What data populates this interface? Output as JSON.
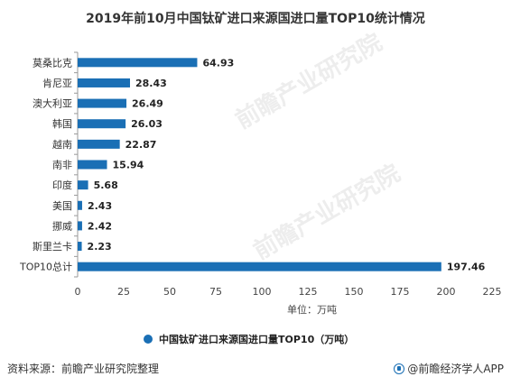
{
  "title": "2019年前10月中国钛矿进口来源国进口量TOP10统计情况",
  "chart_data": {
    "type": "bar",
    "orientation": "horizontal",
    "categories": [
      "莫桑比克",
      "肯尼亚",
      "澳大利亚",
      "韩国",
      "越南",
      "南非",
      "印度",
      "美国",
      "挪威",
      "斯里兰卡",
      "TOP10总计"
    ],
    "series": [
      {
        "name": "中国钛矿进口来源国进口量TOP10（万吨）",
        "values": [
          64.93,
          28.43,
          26.49,
          26.03,
          22.87,
          15.94,
          5.68,
          2.43,
          2.42,
          2.23,
          197.46
        ]
      }
    ],
    "value_labels": [
      "64.93",
      "28.43",
      "26.49",
      "26.03",
      "22.87",
      "15.94",
      "5.68",
      "2.43",
      "2.42",
      "2.23",
      "197.46"
    ],
    "xlabel": "单位：万吨",
    "xlim": [
      0,
      225
    ],
    "xticks": [
      0,
      25,
      50,
      75,
      100,
      125,
      150,
      175,
      200,
      225
    ],
    "grid": false,
    "legend_position": "bottom",
    "bar_color": "#1a6fb5"
  },
  "footer": {
    "source": "资料来源：前瞻产业研究院整理",
    "brand": "@前瞻经济学人APP"
  },
  "watermarks": [
    "前瞻产业研究院",
    "前瞻产业研究院"
  ]
}
